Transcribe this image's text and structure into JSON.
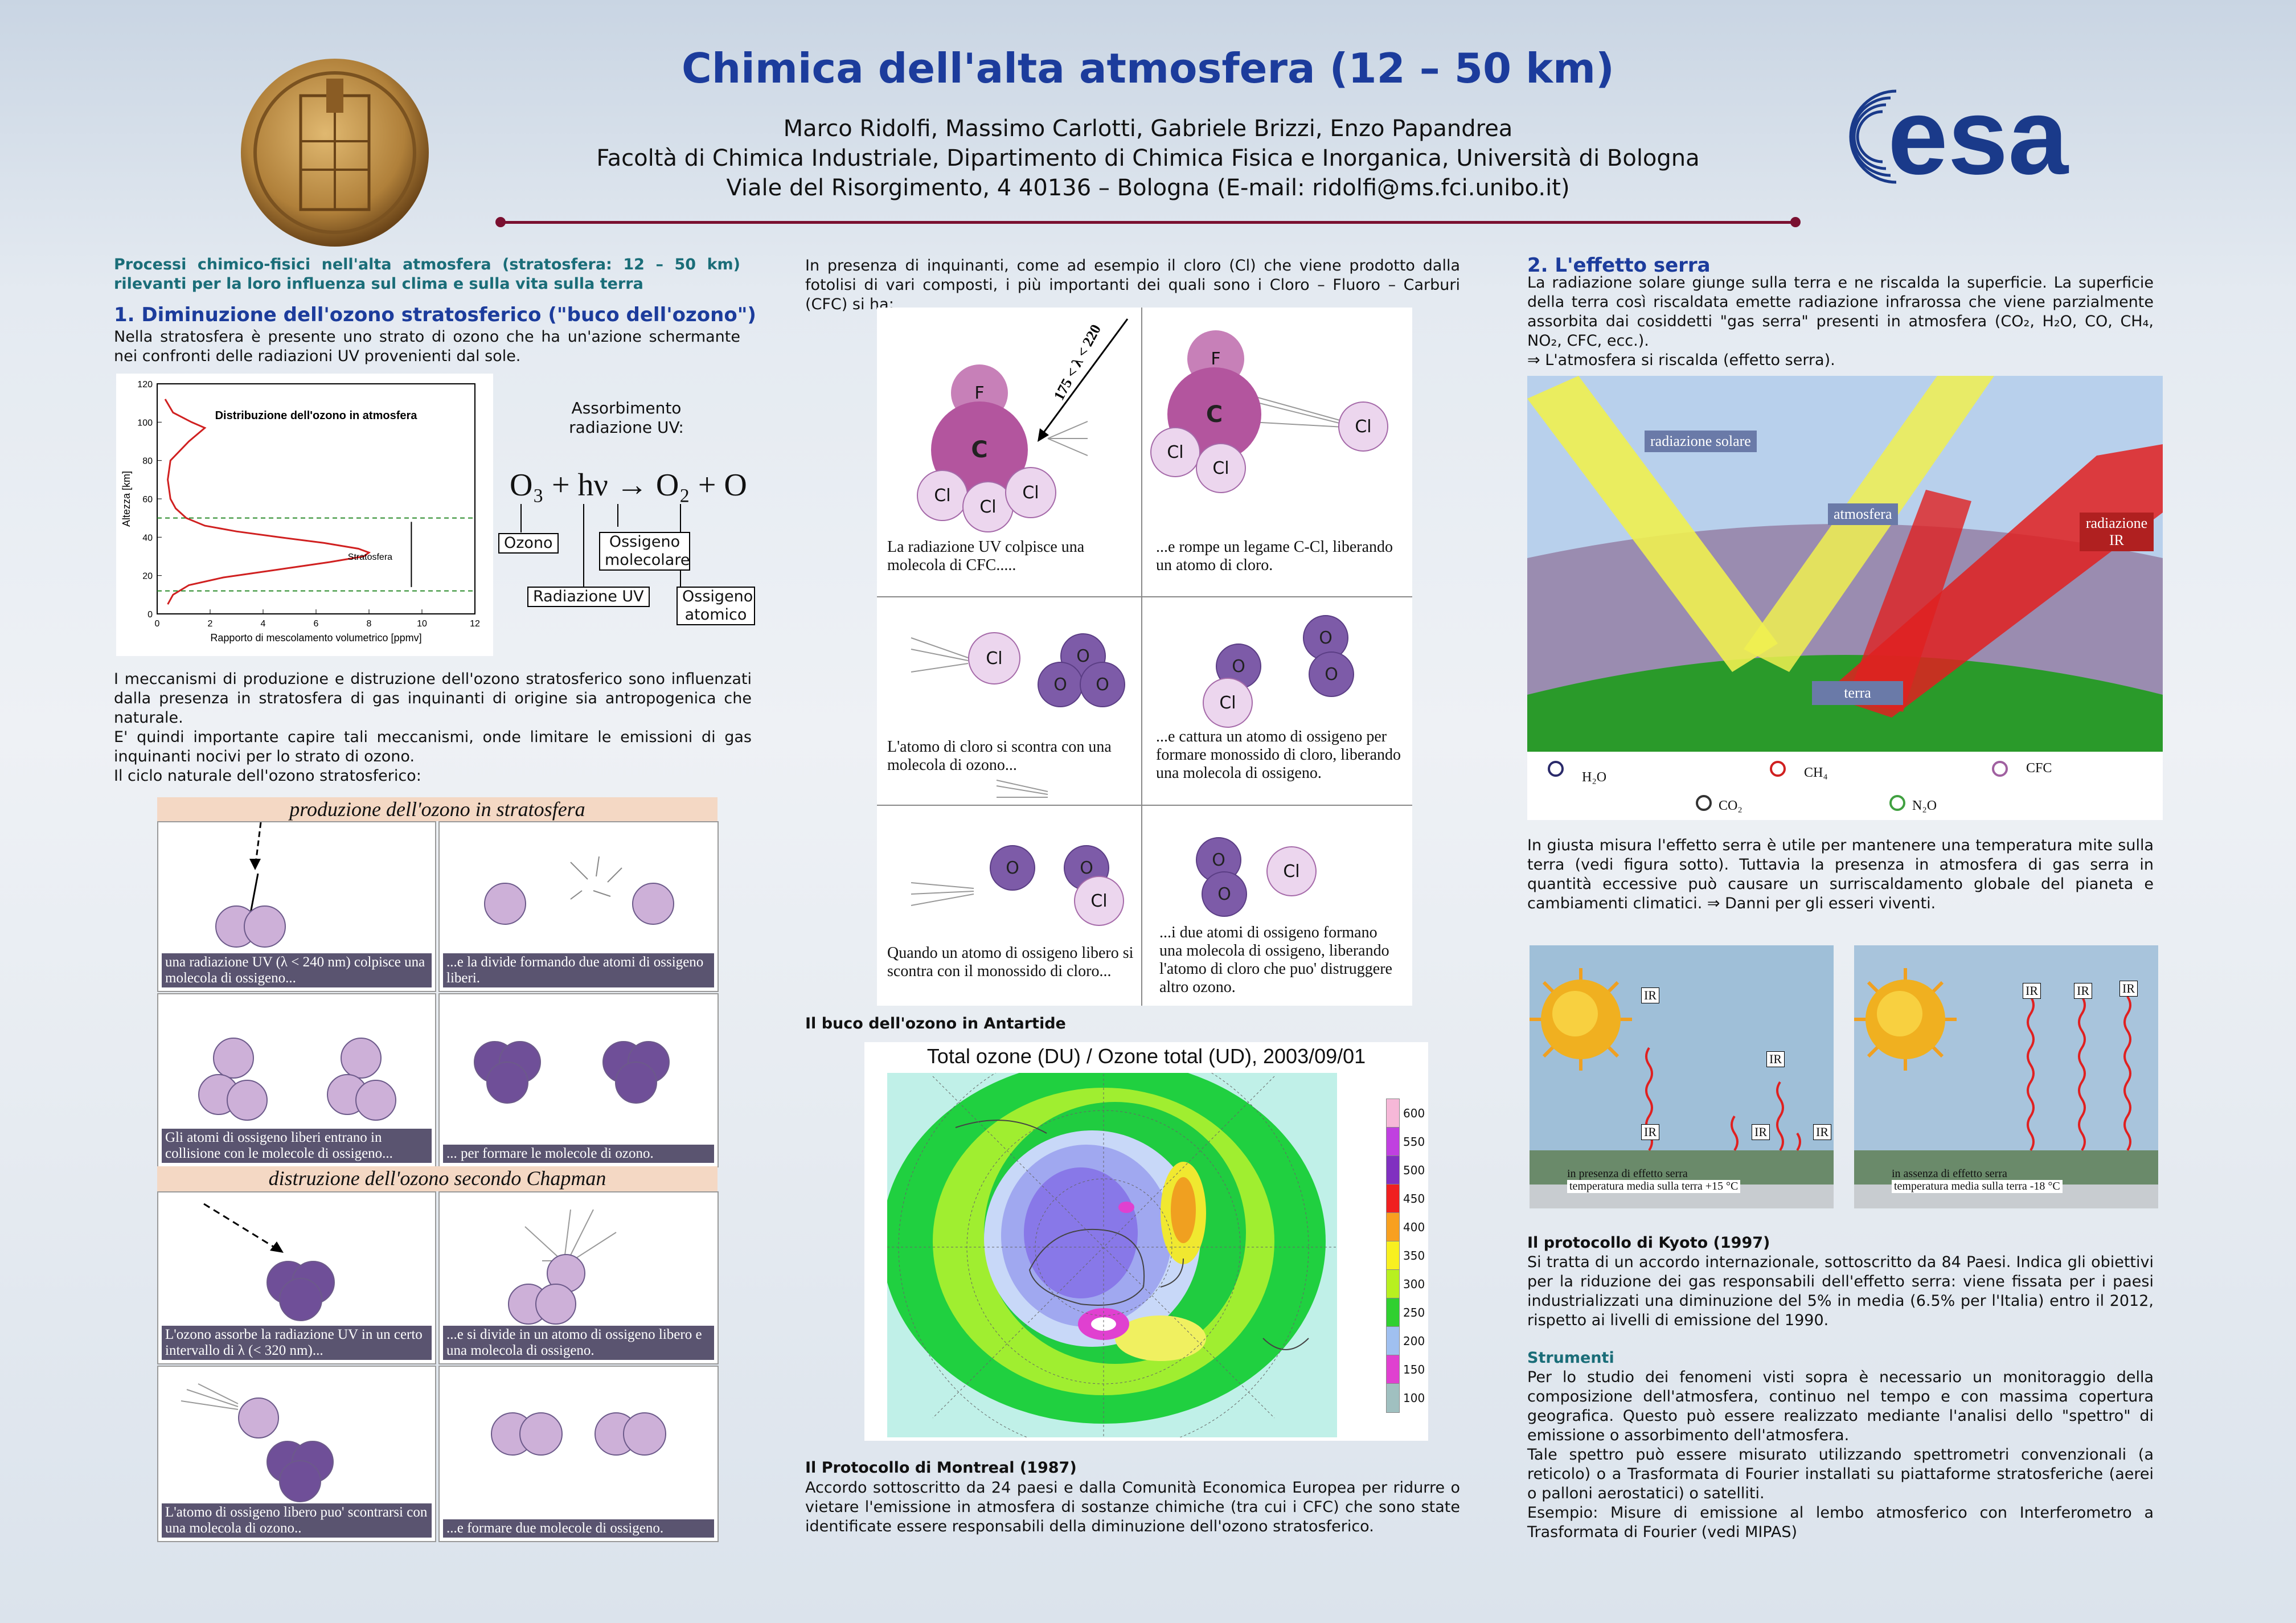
{
  "header": {
    "title": "Chimica dell'alta atmosfera (12 – 50 km)",
    "authors": "Marco Ridolfi, Massimo Carlotti, Gabriele Brizzi, Enzo Papandrea",
    "affiliation": "Facoltà di Chimica Industriale, Dipartimento di Chimica Fisica e Inorganica, Università di Bologna",
    "address": "Viale del Risorgimento, 4  40136 – Bologna (E-mail: ridolfi@ms.fci.unibo.it)",
    "logo_text": "esa"
  },
  "col1": {
    "intro": "Processi chimico-fisici nell'alta atmosfera (stratosfera: 12 – 50 km) rilevanti per la loro influenza sul clima e sulla vita sulla terra",
    "h1": "1. Diminuzione dell'ozono stratosferico (\"buco dell'ozono\")",
    "p1": "Nella stratosfera è presente uno strato di ozono che ha un'azione schermante nei confronti delle radiazioni UV provenienti dal sole.",
    "abs_title": "Assorbimento radiazione UV:",
    "eq": "O₃ + hν → O₂ + O",
    "eq_ozono": "Ozono",
    "eq_radiazione": "Radiazione UV",
    "eq_ossigeno_mol": "Ossigeno molecolare",
    "eq_ossigeno_at": "Ossigeno atomico",
    "p2": "I meccanismi di produzione e distruzione dell'ozono stratosferico sono influenzati dalla presenza in stratosfera di gas inquinanti di origine sia antropogenica che naturale.",
    "p3": "E' quindi importante capire tali meccanismi, onde limitare le emissioni di gas inquinanti nocivi per lo strato di ozono.",
    "p4": "Il ciclo naturale dell'ozono stratosferico:",
    "band1": "produzione dell'ozono in stratosfera",
    "band2": "distruzione dell'ozono secondo Chapman",
    "cap1": "una radiazione UV (λ < 240 nm) colpisce una molecola di ossigeno...",
    "cap2": "...e la divide formando due atomi di ossigeno liberi.",
    "cap3": "Gli atomi di ossigeno liberi entrano in collisione con le molecole di ossigeno...",
    "cap4": "... per formare le molecole di ozono.",
    "cap5": "L'ozono assorbe la radiazione UV in un certo intervallo di λ (< 320 nm)...",
    "cap6": "...e si divide in un atomo di ossigeno libero e una molecola di ossigeno.",
    "cap7": "L'atomo di ossigeno libero puo' scontrarsi con una molecola di ozono..",
    "cap8": "...e formare due molecole di ossigeno."
  },
  "chart_data": {
    "type": "line",
    "title": "Distribuzione dell'ozono in atmosfera",
    "xlabel": "Rapporto di mescolamento volumetrico [ppmv]",
    "ylabel": "Altezza [km]",
    "xlim": [
      0,
      12
    ],
    "ylim": [
      0,
      120
    ],
    "xticks": [
      "0",
      "2",
      "4",
      "6",
      "8",
      "10",
      "12"
    ],
    "yticks": [
      "0",
      "20",
      "40",
      "60",
      "80",
      "100",
      "120"
    ],
    "annotation": "Stratosfera",
    "hlines": [
      12,
      50
    ],
    "series": [
      {
        "x": [
          0.4,
          0.6,
          1.2,
          2.5,
          4.5,
          6.5,
          7.8,
          8.0,
          7.6,
          6.3,
          4.6,
          3.0,
          1.8,
          1.1,
          0.7,
          0.5,
          0.4,
          0.5,
          1.2,
          1.8,
          1.3,
          0.6,
          0.3
        ],
        "y": [
          5,
          10,
          15,
          19,
          23,
          27,
          30,
          32,
          34,
          37,
          40,
          43,
          46,
          50,
          55,
          60,
          70,
          80,
          90,
          97,
          100,
          105,
          112
        ]
      }
    ]
  },
  "col2": {
    "p1": "In presenza di inquinanti, come ad esempio il cloro (Cl) che viene prodotto dalla fotolisi di vari composti, i più importanti dei quali sono i Cloro – Fluoro – Carburi (CFC) si ha:",
    "lambda": "175 < λ < 220",
    "atom_F": "F",
    "atom_C": "C",
    "atom_Cl": "Cl",
    "atom_O": "O",
    "c1": "La radiazione UV colpisce una molecola di CFC.....",
    "c2": "...e rompe un legame C-Cl, liberando un atomo di cloro.",
    "c3": "L'atomo di cloro si scontra con una molecola di ozono...",
    "c4": "...e cattura un atomo di ossigeno per formare monossido di cloro, liberando una molecola di ossigeno.",
    "c5": "Quando un atomo di ossigeno libero si scontra con il monossido di cloro...",
    "c6": "...i due atomi di ossigeno formano una molecola di ossigeno, liberando l'atomo di cloro che puo' distruggere altro ozono.",
    "buco": "Il buco dell'ozono in Antartide",
    "map_title": "Total ozone (DU) / Ozone total (UD), 2003/09/01",
    "legend": [
      "600",
      "550",
      "500",
      "450",
      "400",
      "350",
      "300",
      "250",
      "200",
      "150",
      "100"
    ],
    "legend_colors": [
      "#f6b8d8",
      "#c040e0",
      "#8030c0",
      "#f02020",
      "#f8a020",
      "#f8f020",
      "#b8f020",
      "#30d030",
      "#a0c0f0",
      "#e040d0",
      "#a0c0c0"
    ],
    "mont_h": "Il Protocollo di Montreal (1987)",
    "mont_p": "Accordo sottoscritto da 24 paesi e dalla Comunità Economica Europea per ridurre o vietare l'emissione in atmosfera di sostanze chimiche (tra cui i CFC) che sono state identificate essere responsabili della diminuzione dell'ozono stratosferico."
  },
  "col3": {
    "h2": "2. L'effetto serra",
    "p1": "La radiazione solare giunge sulla terra e ne riscalda la superficie. La superficie della terra così riscaldata emette radiazione infrarossa che viene parzialmente assorbita dai cosiddetti \"gas serra\" presenti in atmosfera (CO₂, H₂O, CO, CH₄, NO₂, CFC, ecc.).",
    "p1b": "⇒ L'atmosfera si riscalda (effetto serra).",
    "lab_sol": "radiazione solare",
    "lab_atm": "atmosfera",
    "lab_ir": "radiazione IR",
    "lab_terra": "terra",
    "leg_h2o": "H₂O",
    "leg_ch4": "CH₄",
    "leg_cfc": "CFC",
    "leg_co2": "CO₂",
    "leg_n2o": "N₂O",
    "p2": "In giusta misura l'effetto serra è utile per mantenere una temperatura mite sulla terra (vedi figura sotto). Tuttavia la presenza in atmosfera di gas serra in quantità eccessive può causare un surriscaldamento globale del pianeta e cambiamenti climatici. ⇒ Danni per gli esseri viventi.",
    "ir": "IR",
    "fig_a1": "in presenza di effetto serra",
    "fig_a2": "temperatura media sulla terra +15 °C",
    "fig_b1": "in assenza di effetto serra",
    "fig_b2": "temperatura media sulla terra -18 °C",
    "kyoto_h": "Il protocollo di Kyoto (1997)",
    "kyoto_p": "Si tratta di un accordo internazionale, sottoscritto da 84 Paesi. Indica gli obiettivi per la riduzione dei gas responsabili dell'effetto serra: viene fissata per i paesi industrializzati una diminuzione del 5% in media (6.5% per l'Italia) entro il 2012, rispetto ai livelli di emissione del 1990.",
    "str_h": "Strumenti",
    "str_p1": "Per lo studio dei fenomeni visti sopra è necessario un monitoraggio della composizione dell'atmosfera, continuo nel tempo e con massima copertura geografica. Questo può essere realizzato mediante l'analisi dello \"spettro\" di emissione o assorbimento dell'atmosfera.",
    "str_p2": "Tale spettro può essere misurato utilizzando spettrometri convenzionali (a reticolo) o a Trasformata di Fourier installati su piattaforme stratosferiche (aerei o palloni aerostatici) o satelliti.",
    "str_p3": "Esempio: Misure di emissione al lembo atmosferico con Interferometro a Trasformata di Fourier (vedi MIPAS)"
  }
}
